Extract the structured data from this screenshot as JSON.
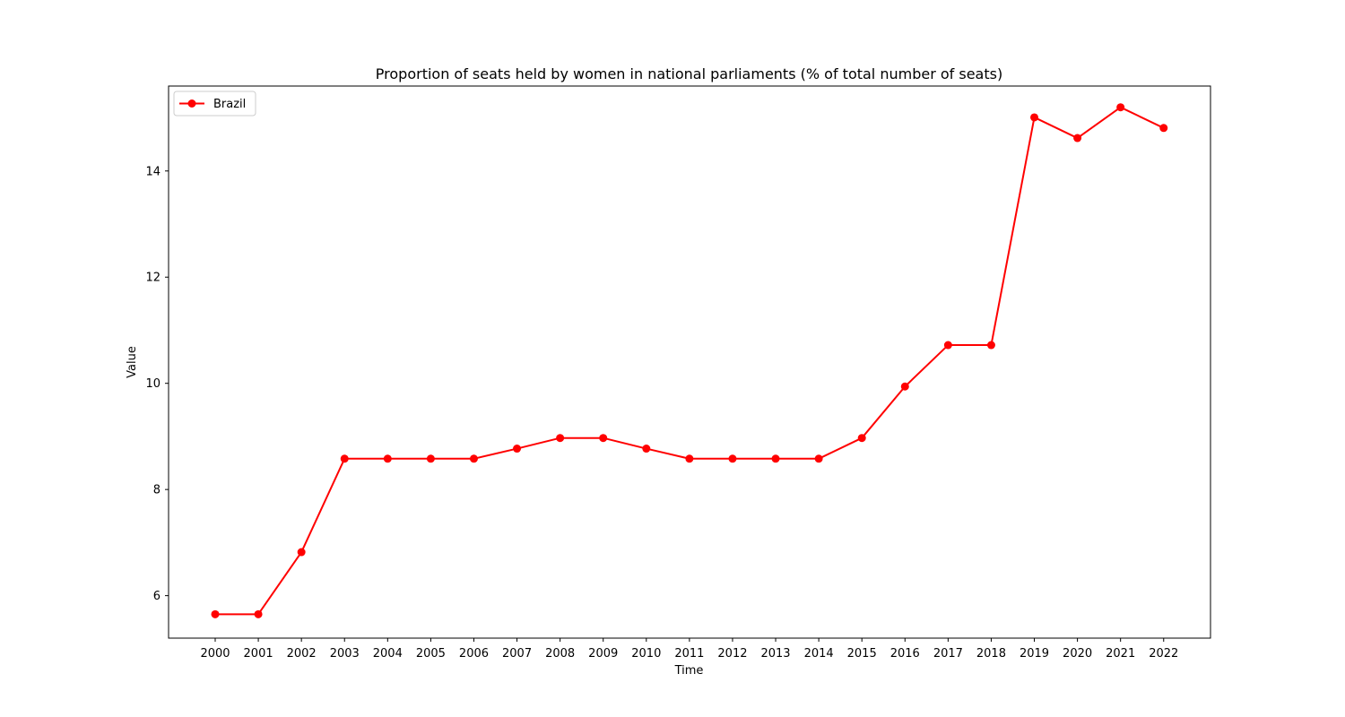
{
  "chart_data": {
    "type": "line",
    "title": "Proportion of seats held by women in national parliaments (% of total number of seats)",
    "xlabel": "Time",
    "ylabel": "Value",
    "ylim": [
      5.2,
      15.6
    ],
    "yticks": [
      6,
      8,
      10,
      12,
      14
    ],
    "grid": false,
    "legend_placement": "upper-left",
    "categories": [
      "2000",
      "2001",
      "2002",
      "2003",
      "2004",
      "2005",
      "2006",
      "2007",
      "2008",
      "2009",
      "2010",
      "2011",
      "2012",
      "2013",
      "2014",
      "2015",
      "2016",
      "2017",
      "2018",
      "2019",
      "2020",
      "2021",
      "2022"
    ],
    "series": [
      {
        "name": "Brazil",
        "color": "#ff0000",
        "marker": "circle",
        "values": [
          5.65,
          5.65,
          6.82,
          8.58,
          8.58,
          8.58,
          8.58,
          8.77,
          8.97,
          8.97,
          8.77,
          8.58,
          8.58,
          8.58,
          8.58,
          8.97,
          9.94,
          10.72,
          10.72,
          15.01,
          14.62,
          15.2,
          14.81
        ]
      }
    ]
  }
}
